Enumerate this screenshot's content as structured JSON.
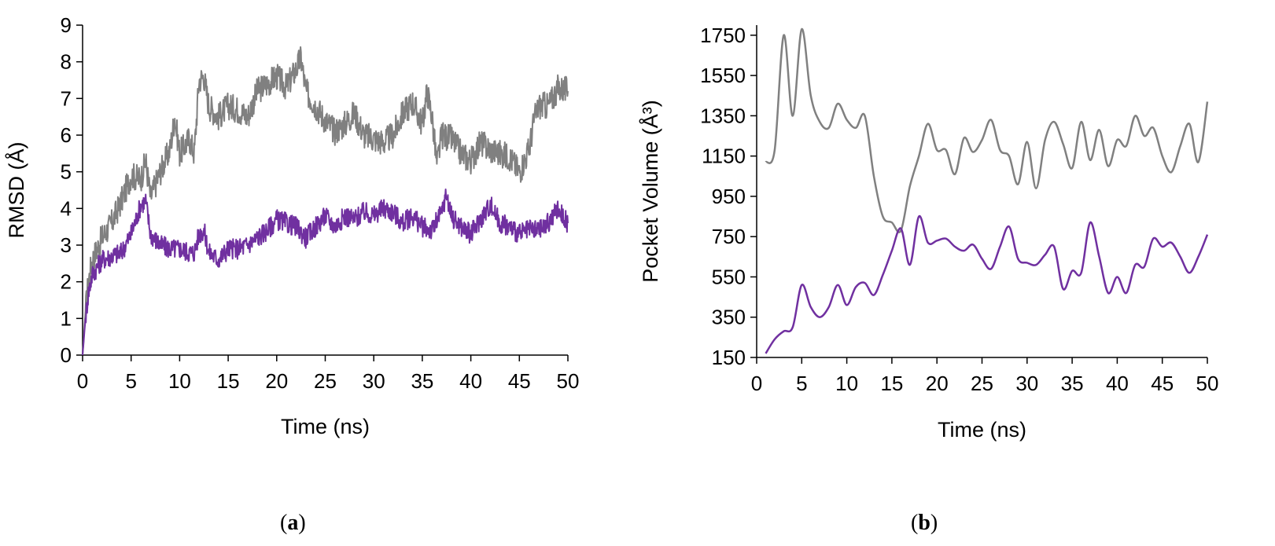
{
  "chart_data": [
    {
      "type": "line",
      "panel": "a",
      "xlabel": "Time (ns)",
      "ylabel": "RMSD (Å)",
      "xlim": [
        0,
        50
      ],
      "ylim": [
        0,
        9
      ],
      "xticks": [
        "0",
        "5",
        "10",
        "15",
        "20",
        "25",
        "30",
        "35",
        "40",
        "45",
        "50"
      ],
      "yticks": [
        "0",
        "1",
        "2",
        "3",
        "4",
        "5",
        "6",
        "7",
        "8",
        "9"
      ],
      "grid": false,
      "legend": "none",
      "series": [
        {
          "color": "#808080",
          "x": [
            0,
            0.3,
            0.6,
            1,
            2,
            3,
            4,
            5,
            6,
            6.5,
            7,
            8,
            9,
            9.5,
            10,
            11,
            11.5,
            12,
            12.5,
            13,
            14,
            15,
            16,
            17,
            18,
            19,
            20,
            21,
            22,
            22.5,
            23,
            24,
            25,
            26,
            27,
            28,
            29,
            30,
            31,
            32,
            33,
            34,
            35,
            35.5,
            36,
            36.5,
            37,
            38,
            39,
            40,
            41,
            42,
            43,
            44,
            45,
            46,
            46.5,
            47,
            48,
            49,
            50
          ],
          "y": [
            0,
            1.2,
            2.0,
            2.6,
            3.2,
            3.6,
            4.2,
            4.9,
            4.8,
            5.3,
            4.3,
            5.0,
            5.6,
            6.5,
            5.5,
            5.9,
            5.5,
            7.5,
            7.6,
            6.8,
            6.5,
            6.8,
            6.7,
            6.5,
            7.2,
            7.4,
            7.6,
            7.3,
            7.8,
            8.1,
            7.2,
            6.8,
            6.4,
            6.1,
            6.3,
            6.6,
            6.0,
            5.9,
            5.8,
            6.0,
            6.6,
            6.9,
            6.3,
            7.2,
            6.5,
            5.2,
            6.0,
            5.9,
            5.5,
            5.3,
            5.8,
            5.6,
            5.5,
            5.4,
            5.0,
            5.6,
            6.4,
            6.8,
            6.8,
            7.3,
            7.2
          ]
        },
        {
          "color": "#7030A0",
          "x": [
            0,
            0.3,
            0.6,
            1,
            2,
            3,
            4,
            5,
            6,
            6.5,
            7,
            8,
            9,
            10,
            11,
            11.5,
            12,
            12.5,
            13,
            14,
            15,
            16,
            17,
            18,
            19,
            20,
            21,
            22,
            23,
            24,
            25,
            26,
            27,
            28,
            29,
            30,
            31,
            32,
            33,
            34,
            35,
            36,
            37,
            37.5,
            38,
            39,
            40,
            41,
            42,
            43,
            44,
            45,
            46,
            47,
            48,
            49,
            50
          ],
          "y": [
            0,
            1.0,
            1.7,
            2.2,
            2.6,
            2.7,
            2.8,
            3.3,
            4.1,
            4.2,
            3.3,
            3.0,
            2.9,
            2.9,
            2.8,
            2.8,
            3.3,
            3.4,
            2.8,
            2.6,
            2.9,
            2.9,
            3.0,
            3.2,
            3.4,
            3.7,
            3.6,
            3.5,
            3.2,
            3.5,
            3.8,
            3.5,
            3.8,
            3.7,
            3.9,
            3.8,
            4.0,
            3.9,
            3.6,
            3.8,
            3.5,
            3.4,
            3.9,
            4.4,
            3.8,
            3.5,
            3.3,
            3.7,
            4.1,
            3.6,
            3.5,
            3.3,
            3.4,
            3.4,
            3.6,
            4.0,
            3.6
          ]
        }
      ]
    },
    {
      "type": "line",
      "panel": "b",
      "xlabel": "Time (ns)",
      "ylabel": "Pocket Volume (Å³)",
      "xlim": [
        0,
        50
      ],
      "ylim": [
        150,
        1800
      ],
      "xticks": [
        "0",
        "5",
        "10",
        "15",
        "20",
        "25",
        "30",
        "35",
        "40",
        "45",
        "50"
      ],
      "yticks": [
        "150",
        "350",
        "550",
        "750",
        "950",
        "1150",
        "1350",
        "1550",
        "1750"
      ],
      "grid": false,
      "legend": "none",
      "series": [
        {
          "color": "#808080",
          "x": [
            1,
            2,
            3,
            4,
            5,
            6,
            7,
            8,
            9,
            10,
            11,
            12,
            13,
            14,
            15,
            16,
            17,
            18,
            19,
            20,
            21,
            22,
            23,
            24,
            25,
            26,
            27,
            28,
            29,
            30,
            31,
            32,
            33,
            34,
            35,
            36,
            37,
            38,
            39,
            40,
            41,
            42,
            43,
            44,
            45,
            46,
            47,
            48,
            49,
            50
          ],
          "y": [
            1120,
            1180,
            1750,
            1350,
            1780,
            1450,
            1320,
            1290,
            1410,
            1330,
            1290,
            1350,
            1050,
            850,
            820,
            780,
            1000,
            1150,
            1310,
            1180,
            1180,
            1060,
            1240,
            1170,
            1230,
            1330,
            1180,
            1150,
            1010,
            1220,
            990,
            1230,
            1320,
            1210,
            1090,
            1320,
            1130,
            1280,
            1100,
            1230,
            1200,
            1350,
            1250,
            1290,
            1150,
            1070,
            1200,
            1310,
            1120,
            1420
          ]
        },
        {
          "color": "#7030A0",
          "x": [
            1,
            2,
            3,
            4,
            5,
            6,
            7,
            8,
            9,
            10,
            11,
            12,
            13,
            14,
            15,
            16,
            17,
            18,
            19,
            20,
            21,
            22,
            23,
            24,
            25,
            26,
            27,
            28,
            29,
            30,
            31,
            32,
            33,
            34,
            35,
            36,
            37,
            38,
            39,
            40,
            41,
            42,
            43,
            44,
            45,
            46,
            47,
            48,
            49,
            50
          ],
          "y": [
            170,
            240,
            280,
            300,
            510,
            400,
            350,
            400,
            510,
            410,
            500,
            520,
            460,
            560,
            680,
            790,
            610,
            850,
            720,
            730,
            740,
            700,
            680,
            710,
            640,
            590,
            700,
            800,
            640,
            620,
            610,
            660,
            700,
            490,
            580,
            570,
            820,
            650,
            470,
            550,
            470,
            610,
            600,
            740,
            700,
            720,
            650,
            570,
            650,
            760
          ]
        }
      ]
    }
  ],
  "panel_labels": {
    "a": "a",
    "b": "b"
  }
}
